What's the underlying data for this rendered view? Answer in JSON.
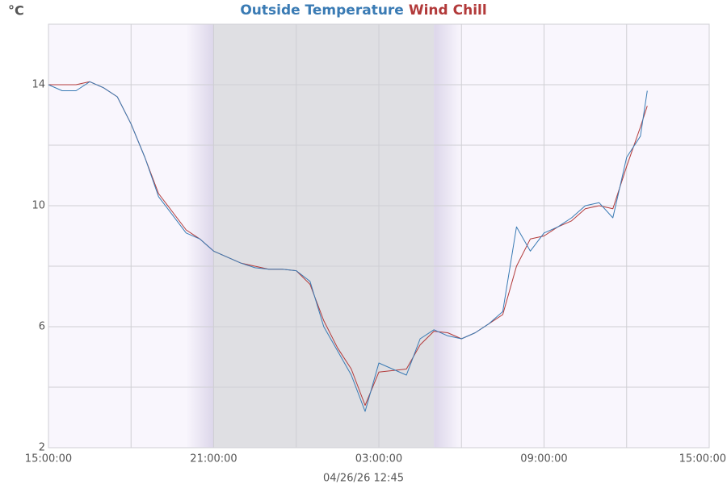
{
  "chart_data": {
    "type": "line",
    "y_label": "°C",
    "footer": "04/26/26 12:45",
    "x": [
      0,
      0.5,
      1,
      1.5,
      2,
      2.5,
      3,
      3.5,
      4,
      4.5,
      5,
      5.5,
      6,
      6.5,
      7,
      7.5,
      8,
      8.5,
      9,
      9.5,
      10,
      10.5,
      11,
      11.5,
      12,
      12.5,
      13,
      13.5,
      14,
      14.5,
      15,
      15.5,
      16,
      16.5,
      17,
      17.5,
      18,
      18.5,
      19,
      19.5,
      20,
      20.5,
      21,
      21.5,
      21.75
    ],
    "series": [
      {
        "name": "Outside Temperature",
        "color": "#3a7bb4",
        "values": [
          14.0,
          13.8,
          13.8,
          14.1,
          13.9,
          13.6,
          12.7,
          11.6,
          10.3,
          9.7,
          9.1,
          8.9,
          8.5,
          8.3,
          8.1,
          7.95,
          7.9,
          7.9,
          7.85,
          7.5,
          6.0,
          5.2,
          4.4,
          3.2,
          4.8,
          4.6,
          4.4,
          5.6,
          5.9,
          5.7,
          5.6,
          5.8,
          6.1,
          6.5,
          9.3,
          8.5,
          9.1,
          9.3,
          9.6,
          10.0,
          10.1,
          9.6,
          11.6,
          12.3,
          13.8
        ]
      },
      {
        "name": "Wind Chill",
        "color": "#b23a3a",
        "values": [
          14.0,
          14.0,
          14.0,
          14.1,
          13.9,
          13.6,
          12.7,
          11.6,
          10.4,
          9.8,
          9.2,
          8.9,
          8.5,
          8.3,
          8.1,
          8.0,
          7.9,
          7.9,
          7.85,
          7.4,
          6.2,
          5.3,
          4.6,
          3.4,
          4.5,
          4.55,
          4.6,
          5.4,
          5.85,
          5.8,
          5.6,
          5.8,
          6.1,
          6.4,
          8.0,
          8.9,
          9.0,
          9.3,
          9.5,
          9.9,
          10.0,
          9.9,
          11.3,
          12.6,
          13.3
        ]
      }
    ],
    "xlim": [
      0,
      24
    ],
    "xticks": [
      {
        "value": 0,
        "label": "15:00:00"
      },
      {
        "value": 6,
        "label": "21:00:00"
      },
      {
        "value": 12,
        "label": "03:00:00"
      },
      {
        "value": 18,
        "label": "09:00:00"
      },
      {
        "value": 24,
        "label": "15:00:00"
      }
    ],
    "xminor": [
      3,
      9,
      15,
      21
    ],
    "ylim": [
      2,
      16
    ],
    "yticks": [
      2,
      6,
      10,
      14
    ],
    "yminor": [
      4,
      8,
      12,
      16
    ],
    "night": [
      5,
      15
    ],
    "grid": true
  }
}
